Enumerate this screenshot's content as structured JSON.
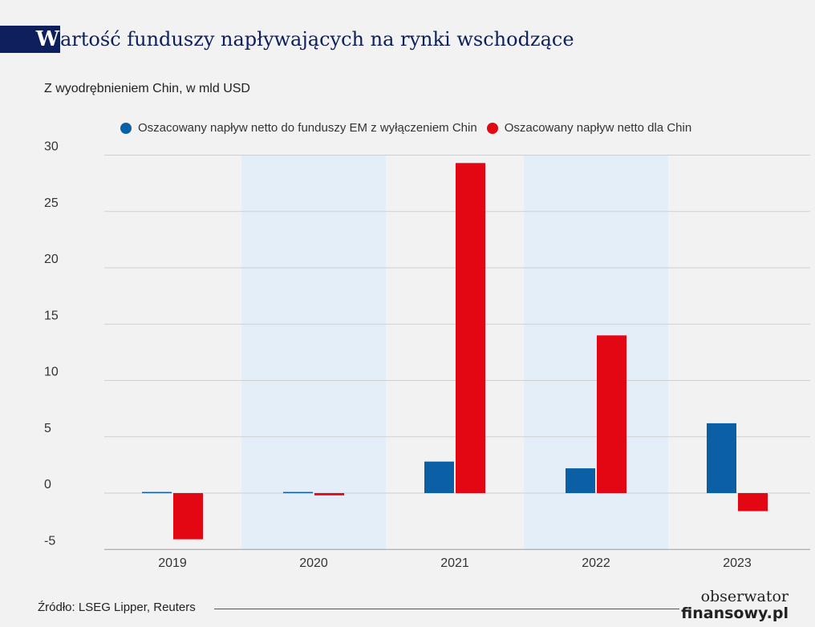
{
  "title": {
    "initial": "W",
    "rest": "artość funduszy napływających na rynki wschodzące"
  },
  "subtitle": "Z wyodrębnieniem Chin, w mld USD",
  "legend": [
    {
      "label": "Oszacowany napływ netto do funduszy EM z wyłączeniem Chin",
      "color": "#0b5fa5"
    },
    {
      "label": "Oszacowany napływ netto dla Chin",
      "color": "#e30613"
    }
  ],
  "chart_data": {
    "type": "bar",
    "categories": [
      "2019",
      "2020",
      "2021",
      "2022",
      "2023"
    ],
    "series": [
      {
        "name": "Oszacowany napływ netto do funduszy EM z wyłączeniem Chin",
        "values": [
          0.1,
          0.1,
          2.8,
          2.2,
          6.2
        ],
        "color": "#0b5fa5"
      },
      {
        "name": "Oszacowany napływ netto dla Chin",
        "values": [
          -4.1,
          -0.2,
          29.3,
          14.0,
          -1.6
        ],
        "color": "#e30613"
      }
    ],
    "ylim": [
      -5,
      30
    ],
    "yticks": [
      -5,
      0,
      5,
      10,
      15,
      20,
      25,
      30
    ],
    "grid": true,
    "shaded_categories": [
      "2020",
      "2022"
    ],
    "shade_color": "#e3eef9",
    "legend_position": "top"
  },
  "footer": {
    "source": "Źródło: LSEG Lipper, Reuters"
  },
  "logo": {
    "top": "obserwator",
    "bottom": "finansowy.pl"
  }
}
